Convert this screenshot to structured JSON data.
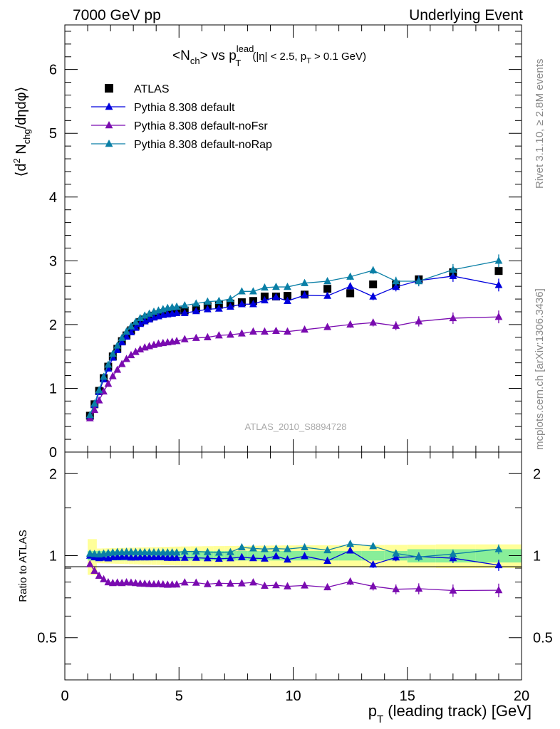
{
  "header": {
    "left": "7000 GeV pp",
    "right": "Underlying Event"
  },
  "side_labels": {
    "rivet": "Rivet 3.1.10, ≥ 2.8M events",
    "mcplots": "mcplots.cern.ch [arXiv:1306.3436]"
  },
  "analysis_id": "ATLAS_2010_S8894728",
  "title": {
    "main": "<N",
    "main_sub": "ch",
    "vs": "> vs p",
    "vs_sup": "lead",
    "vs_sub": "T",
    "cut": "(|η| < 2.5, p",
    "cut_sub": "T",
    "cut_end": " > 0.1 GeV)"
  },
  "top_ylabel": {
    "pre": "⟨d",
    "sup": "2",
    "mid": " N",
    "sub": "chg",
    "post": "/dηdφ⟩"
  },
  "ratio_ylabel": "Ratio to ATLAS",
  "xlabel": {
    "p": "p",
    "sub": "T",
    "rest": " (leading track) [GeV]"
  },
  "chart_data": {
    "type": "line",
    "xlim": [
      0,
      20
    ],
    "top_ylim": [
      0,
      6.7
    ],
    "ratio_ylim": [
      0.35,
      2.4
    ],
    "ratio_log": true,
    "x_ticks": [
      "0",
      "5",
      "10",
      "15",
      "20"
    ],
    "top_y_ticks": [
      "0",
      "1",
      "2",
      "3",
      "4",
      "5",
      "6"
    ],
    "ratio_y_ticks": [
      "0.5",
      "1",
      "2"
    ],
    "legend_position": "top-left",
    "x": [
      1.1,
      1.3,
      1.5,
      1.7,
      1.9,
      2.1,
      2.3,
      2.5,
      2.7,
      2.9,
      3.1,
      3.3,
      3.5,
      3.7,
      3.9,
      4.1,
      4.3,
      4.5,
      4.7,
      4.9,
      5.25,
      5.75,
      6.25,
      6.75,
      7.25,
      7.75,
      8.25,
      8.75,
      9.25,
      9.75,
      10.5,
      11.5,
      12.5,
      13.5,
      14.5,
      15.5,
      17.0,
      19.0
    ],
    "series": [
      {
        "name": "ATLAS",
        "color": "#000000",
        "marker": "square",
        "values": [
          0.57,
          0.75,
          0.96,
          1.16,
          1.34,
          1.5,
          1.62,
          1.74,
          1.83,
          1.91,
          1.98,
          2.04,
          2.08,
          2.11,
          2.14,
          2.16,
          2.18,
          2.2,
          2.21,
          2.22,
          2.22,
          2.25,
          2.29,
          2.31,
          2.33,
          2.35,
          2.37,
          2.44,
          2.44,
          2.45,
          2.47,
          2.56,
          2.49,
          2.63,
          2.63,
          2.71,
          2.82,
          2.84
        ],
        "band_stat": 0.04,
        "band_total": 0.1
      },
      {
        "name": "Pythia 8.308 default",
        "color": "#0000dd",
        "marker": "triangle",
        "values": [
          0.57,
          0.74,
          0.94,
          1.14,
          1.31,
          1.48,
          1.6,
          1.72,
          1.81,
          1.88,
          1.95,
          2.01,
          2.05,
          2.08,
          2.11,
          2.13,
          2.15,
          2.16,
          2.17,
          2.18,
          2.18,
          2.21,
          2.24,
          2.25,
          2.28,
          2.32,
          2.32,
          2.38,
          2.43,
          2.37,
          2.46,
          2.45,
          2.6,
          2.44,
          2.59,
          2.69,
          2.76,
          2.62
        ]
      },
      {
        "name": "Pythia 8.308 default-noFsr",
        "color": "#7a0bb0",
        "marker": "triangle",
        "values": [
          0.53,
          0.66,
          0.81,
          0.95,
          1.07,
          1.19,
          1.29,
          1.38,
          1.46,
          1.52,
          1.57,
          1.61,
          1.64,
          1.66,
          1.68,
          1.7,
          1.71,
          1.72,
          1.73,
          1.74,
          1.77,
          1.79,
          1.8,
          1.83,
          1.84,
          1.86,
          1.89,
          1.89,
          1.9,
          1.89,
          1.92,
          1.96,
          2.0,
          2.03,
          1.98,
          2.05,
          2.1,
          2.12
        ]
      },
      {
        "name": "Pythia 8.308 default-noRap",
        "color": "#0a7fa6",
        "marker": "triangle",
        "values": [
          0.58,
          0.76,
          0.97,
          1.18,
          1.37,
          1.54,
          1.67,
          1.79,
          1.89,
          1.97,
          2.04,
          2.1,
          2.14,
          2.17,
          2.2,
          2.22,
          2.24,
          2.26,
          2.27,
          2.28,
          2.3,
          2.33,
          2.36,
          2.37,
          2.4,
          2.52,
          2.52,
          2.58,
          2.59,
          2.59,
          2.65,
          2.68,
          2.75,
          2.85,
          2.68,
          2.68,
          2.86,
          3.0
        ]
      }
    ]
  }
}
